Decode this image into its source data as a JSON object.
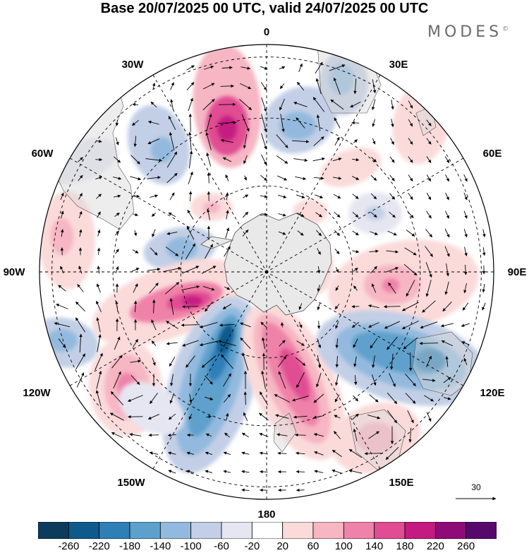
{
  "title": "Base 20/07/2025 00 UTC, valid 24/07/2025 00 UTC",
  "brand": {
    "name": "MODES",
    "mark": "©"
  },
  "meridian_labels": {
    "lon_0": "0",
    "lon_30e": "30E",
    "lon_60e": "60E",
    "lon_90e": "90E",
    "lon_120e": "120E",
    "lon_150e": "150E",
    "lon_180": "180",
    "lon_150w": "150W",
    "lon_120w": "120W",
    "lon_90w": "90W",
    "lon_60w": "60W",
    "lon_30w": "30W"
  },
  "vector_scale": {
    "label": "30"
  },
  "colorbar": {
    "colors": [
      "#0b3c5d",
      "#0e5a8c",
      "#2f7fb7",
      "#5ea0cc",
      "#93bade",
      "#c2cfe6",
      "#e6e6f2",
      "#ffffff",
      "#fbdada",
      "#f6b6c3",
      "#ef82a8",
      "#e04d92",
      "#c51a81",
      "#8e0b78",
      "#57086c"
    ],
    "labels": [
      "-260",
      "-220",
      "-180",
      "-140",
      "-100",
      "-60",
      "-20",
      "20",
      "60",
      "100",
      "140",
      "180",
      "220",
      "260"
    ]
  },
  "field_colors": {
    "antarctica": "#e9e9e9",
    "land": "#d8d8d8",
    "coast": "#555555"
  }
}
